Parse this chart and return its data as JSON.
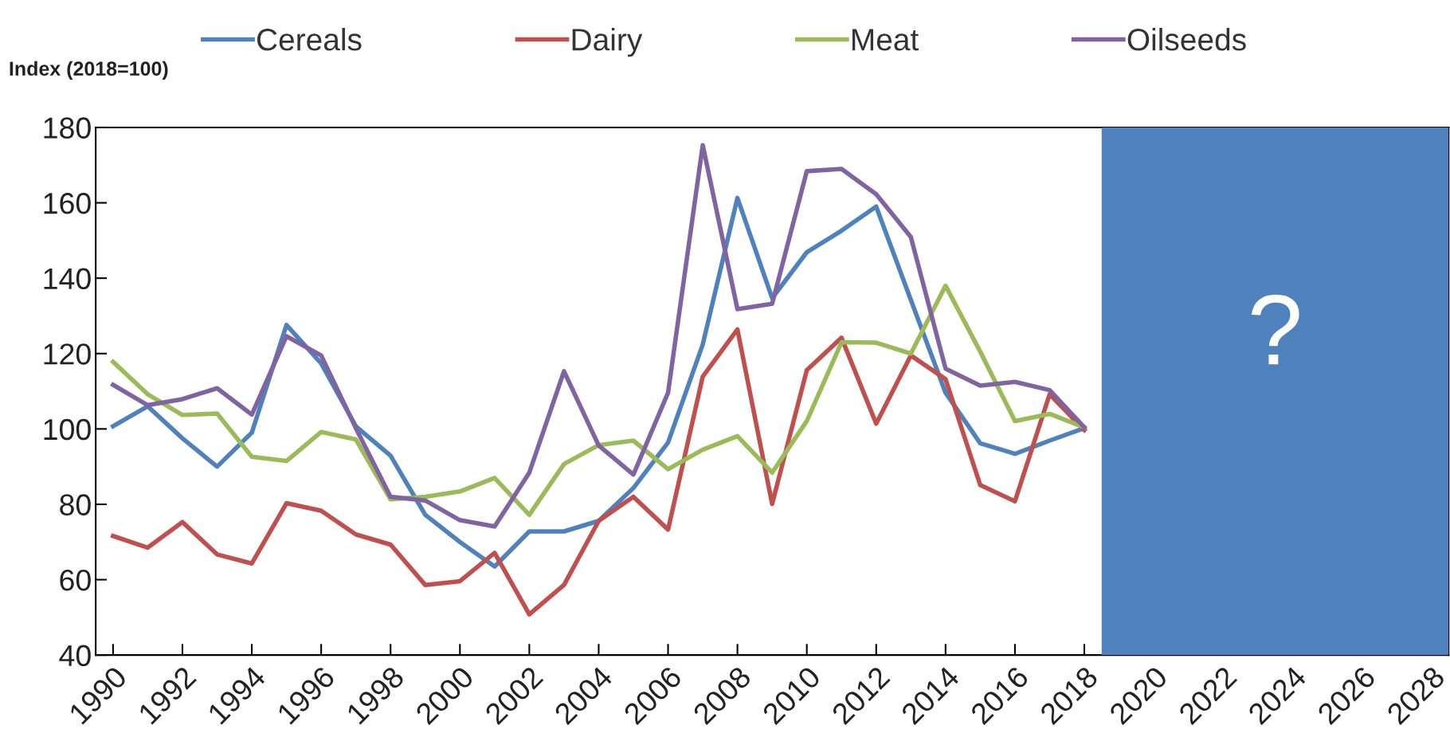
{
  "chart_data": {
    "type": "line",
    "ylabel": "Index (2018=100)",
    "x": [
      1990,
      1991,
      1992,
      1993,
      1994,
      1995,
      1996,
      1997,
      1998,
      1999,
      2000,
      2001,
      2002,
      2003,
      2004,
      2005,
      2006,
      2007,
      2008,
      2009,
      2010,
      2011,
      2012,
      2013,
      2014,
      2015,
      2016,
      2017,
      2018
    ],
    "series": [
      {
        "name": "Cereals",
        "color": "#4f81bd",
        "values": [
          100.7,
          106,
          97.5,
          90,
          99,
          127.6,
          117.4,
          100.7,
          92.9,
          77.2,
          70,
          63.5,
          72.8,
          72.8,
          75.6,
          84.3,
          96.4,
          122.4,
          161.3,
          134.7,
          146.9,
          152.6,
          159,
          134.2,
          109.6,
          96.2,
          93.4,
          96.9,
          100.2
        ]
      },
      {
        "name": "Dairy",
        "color": "#c0504d",
        "values": [
          71.6,
          68.5,
          75.3,
          66.7,
          64.3,
          80.3,
          78.3,
          72,
          69.3,
          58.6,
          59.6,
          67.1,
          50.8,
          58.6,
          75.6,
          82,
          73.3,
          113.9,
          126.4,
          80.1,
          115.6,
          124.2,
          101.4,
          119.5,
          113.2,
          85.1,
          80.8,
          109.2,
          99.7
        ]
      },
      {
        "name": "Meat",
        "color": "#9bbb59",
        "values": [
          117.8,
          109.2,
          103.7,
          104.1,
          92.6,
          91.5,
          99.2,
          97.2,
          81.3,
          82,
          83.4,
          87,
          77.2,
          90.7,
          95.7,
          96.9,
          89.3,
          94.5,
          98.1,
          88.4,
          102.1,
          123,
          122.9,
          120,
          138,
          120.5,
          102.1,
          104,
          100.4
        ]
      },
      {
        "name": "Oilseeds",
        "color": "#8064a2",
        "values": [
          111.7,
          106.3,
          107.9,
          110.8,
          103.8,
          124.6,
          119.5,
          100.2,
          82,
          81,
          75.8,
          74.1,
          88.4,
          115.3,
          95.6,
          87.9,
          109.6,
          175.3,
          131.8,
          133.2,
          168.4,
          169,
          162.3,
          150.9,
          116,
          111.5,
          112.5,
          110.3,
          100.4
        ]
      }
    ],
    "xlim": [
      1989.5,
      2028.5
    ],
    "xticks": [
      1990,
      1992,
      1994,
      1996,
      1998,
      2000,
      2002,
      2004,
      2006,
      2008,
      2010,
      2012,
      2014,
      2016,
      2018,
      2020,
      2022,
      2024,
      2026,
      2028
    ],
    "ylim": [
      40,
      180
    ],
    "yticks": [
      40,
      60,
      80,
      100,
      120,
      140,
      160,
      180
    ],
    "bands": [
      {
        "axis": "x",
        "from": 2018.5,
        "to": 2028.5,
        "label": "?",
        "color": "#4f81bd"
      }
    ],
    "legend": "top",
    "grid": false,
    "marker": "none",
    "line_style": "solid"
  }
}
